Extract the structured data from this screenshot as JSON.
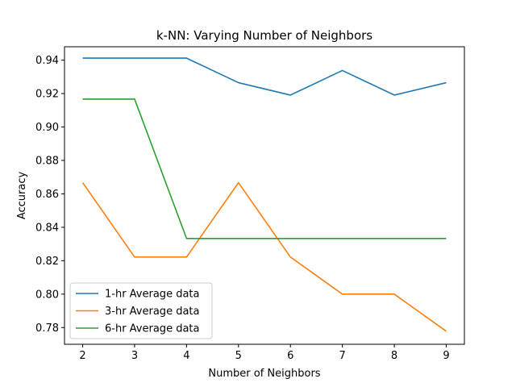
{
  "chart_data": {
    "type": "line",
    "title": "k-NN: Varying Number of Neighbors",
    "xlabel": "Number of Neighbors",
    "ylabel": "Accuracy",
    "x": [
      2,
      3,
      4,
      5,
      6,
      7,
      8,
      9
    ],
    "x_ticks": [
      "2",
      "3",
      "4",
      "5",
      "6",
      "7",
      "8",
      "9"
    ],
    "y_ticks": [
      "0.78",
      "0.80",
      "0.82",
      "0.84",
      "0.86",
      "0.88",
      "0.90",
      "0.92",
      "0.94"
    ],
    "xlim": [
      1.65,
      9.35
    ],
    "ylim": [
      0.77,
      0.948
    ],
    "grid": false,
    "legend_position": "lower-left",
    "series": [
      {
        "name": "1-hr Average data",
        "color": "#1f77b4",
        "values": [
          0.9412,
          0.9412,
          0.9412,
          0.9265,
          0.9191,
          0.9338,
          0.9191,
          0.9265
        ]
      },
      {
        "name": "3-hr Average data",
        "color": "#ff7f0e",
        "values": [
          0.8667,
          0.8222,
          0.8222,
          0.8667,
          0.8222,
          0.8,
          0.8,
          0.7778
        ]
      },
      {
        "name": "6-hr Average data",
        "color": "#2ca02c",
        "values": [
          0.9167,
          0.9167,
          0.8333,
          0.8333,
          0.8333,
          0.8333,
          0.8333,
          0.8333
        ]
      }
    ]
  }
}
